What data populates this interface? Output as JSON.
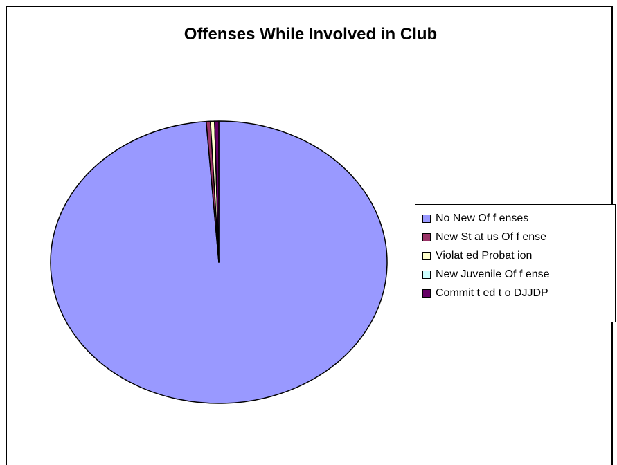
{
  "chart_data": {
    "type": "pie",
    "title": "Offenses While Involved in Club",
    "categories": [
      "No New Offenses",
      "New Status Offense",
      "Violated Probation",
      "New Juvenile Offense",
      "Committed to DJJDP"
    ],
    "values": [
      98.8,
      0.4,
      0.4,
      0.0,
      0.4
    ],
    "colors": [
      "#9999ff",
      "#993366",
      "#ffffcc",
      "#ccffff",
      "#660066"
    ],
    "legend_position": "right"
  },
  "legend_labels": [
    "No New Of f enses",
    "New St at us Of f ense",
    "Violat ed Probat ion",
    "New Juvenile Of f ense",
    "Commit t ed t o DJJDP"
  ]
}
